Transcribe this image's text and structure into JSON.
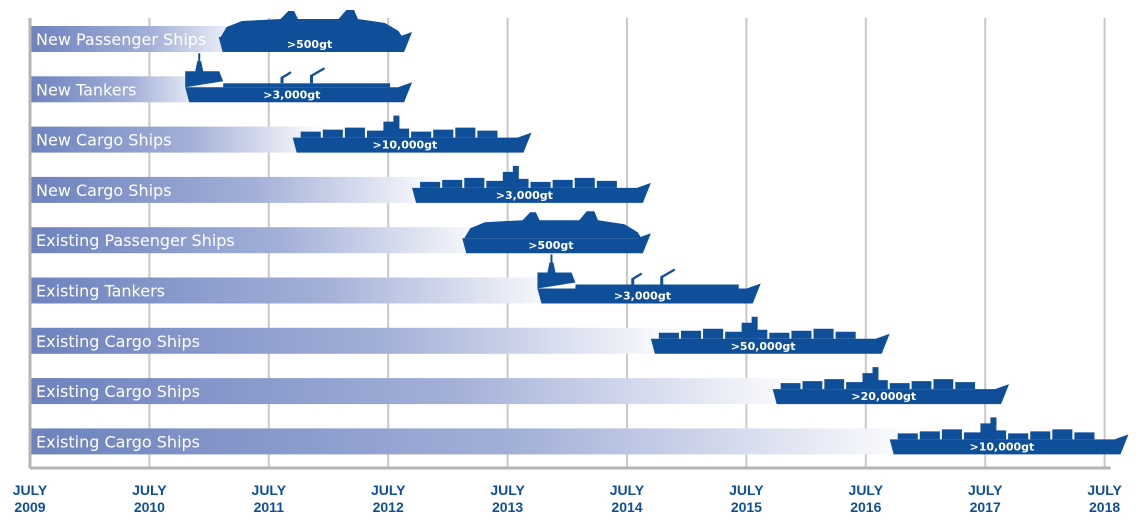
{
  "chart_data": {
    "type": "timeline",
    "axis_ticks": [
      {
        "line1": "JULY",
        "line2": "2009"
      },
      {
        "line1": "JULY",
        "line2": "2010"
      },
      {
        "line1": "JULY",
        "line2": "2011"
      },
      {
        "line1": "JULY",
        "line2": "2012"
      },
      {
        "line1": "JULY",
        "line2": "2013"
      },
      {
        "line1": "JULY",
        "line2": "2014"
      },
      {
        "line1": "JULY",
        "line2": "2015"
      },
      {
        "line1": "JULY",
        "line2": "2016"
      },
      {
        "line1": "JULY",
        "line2": "2017"
      },
      {
        "line1": "JULY",
        "line2": "2018"
      }
    ],
    "rows": [
      {
        "label": "New Passenger Ships",
        "threshold": ">500gt",
        "ship": "passenger",
        "ship_start": 2010.58,
        "ship_end": 2012.2
      },
      {
        "label": "New Tankers",
        "threshold": ">3,000gt",
        "ship": "tanker",
        "ship_start": 2010.3,
        "ship_end": 2012.2
      },
      {
        "label": "New Cargo Ships",
        "threshold": ">10,000gt",
        "ship": "cargo",
        "ship_start": 2011.2,
        "ship_end": 2013.2
      },
      {
        "label": "New Cargo Ships",
        "threshold": ">3,000gt",
        "ship": "cargo",
        "ship_start": 2012.2,
        "ship_end": 2014.2
      },
      {
        "label": "Existing Passenger Ships",
        "threshold": ">500gt",
        "ship": "passenger",
        "ship_start": 2012.62,
        "ship_end": 2014.2
      },
      {
        "label": "Existing Tankers",
        "threshold": ">3,000gt",
        "ship": "tanker",
        "ship_start": 2013.25,
        "ship_end": 2015.12
      },
      {
        "label": "Existing Cargo Ships",
        "threshold": ">50,000gt",
        "ship": "cargo",
        "ship_start": 2014.2,
        "ship_end": 2016.2
      },
      {
        "label": "Existing Cargo Ships",
        "threshold": ">20,000gt",
        "ship": "cargo",
        "ship_start": 2015.22,
        "ship_end": 2017.2
      },
      {
        "label": "Existing Cargo Ships",
        "threshold": ">10,000gt",
        "ship": "cargo",
        "ship_start": 2016.2,
        "ship_end": 2018.2
      }
    ],
    "colors": {
      "bar_left": "#6d82be",
      "bar_right": "#ffffff",
      "ship": "#0f4f99",
      "axis_text": "#0f4f99",
      "grid": "#c8c8c8",
      "axis": "#b5b5b5"
    }
  }
}
